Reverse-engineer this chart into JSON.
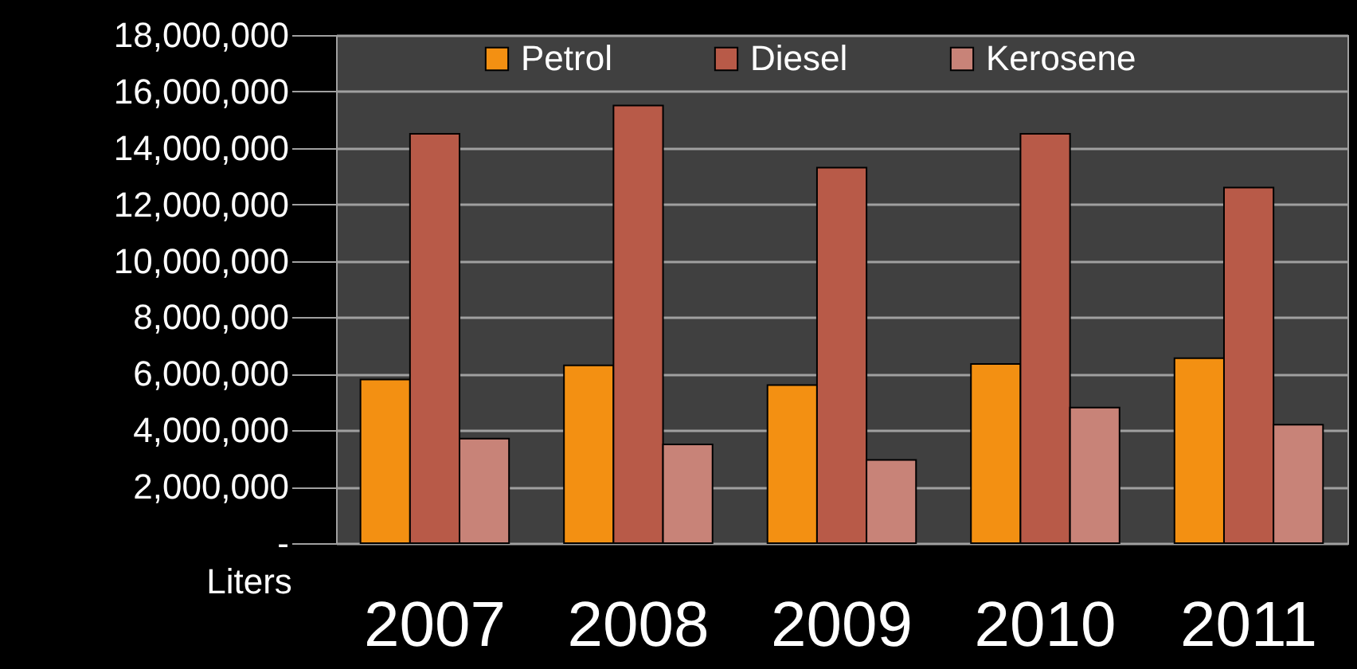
{
  "chart_data": {
    "type": "bar",
    "ylabel": "Liters",
    "categories": [
      "2007",
      "2008",
      "2009",
      "2010",
      "2011"
    ],
    "series": [
      {
        "name": "Petrol",
        "color": "#f39012",
        "values": [
          5800000,
          6300000,
          5600000,
          6350000,
          6550000
        ]
      },
      {
        "name": "Diesel",
        "color": "#b85a48",
        "values": [
          14500000,
          15500000,
          13300000,
          14500000,
          12600000
        ]
      },
      {
        "name": "Kerosene",
        "color": "#c88378",
        "values": [
          3700000,
          3500000,
          2950000,
          4800000,
          4200000
        ]
      }
    ],
    "ylim": [
      0,
      18000000
    ],
    "yticks": [
      {
        "value": 0,
        "label": "-"
      },
      {
        "value": 2000000,
        "label": "2,000,000"
      },
      {
        "value": 4000000,
        "label": "4,000,000"
      },
      {
        "value": 6000000,
        "label": "6,000,000"
      },
      {
        "value": 8000000,
        "label": "8,000,000"
      },
      {
        "value": 10000000,
        "label": "10,000,000"
      },
      {
        "value": 12000000,
        "label": "12,000,000"
      },
      {
        "value": 14000000,
        "label": "14,000,000"
      },
      {
        "value": 16000000,
        "label": "16,000,000"
      },
      {
        "value": 18000000,
        "label": "18,000,000"
      }
    ],
    "grid": "y",
    "legend": "top"
  }
}
